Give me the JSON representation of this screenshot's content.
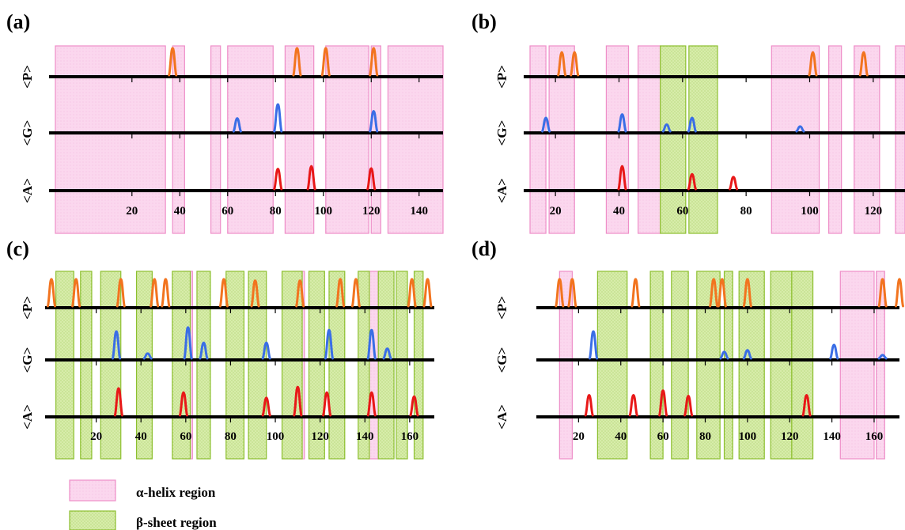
{
  "colors": {
    "helix_fill": "#fbd7ee",
    "helix_stroke": "#ee8ec8",
    "sheet_fill": "#d7ecaa",
    "sheet_stroke": "#8cbf2e",
    "P": "#f2741f",
    "G": "#3a6ee6",
    "A": "#e81818",
    "axis": "#000000"
  },
  "legend": {
    "helix_label": "α-helix region",
    "sheet_label": "β-sheet region"
  },
  "chart_data": [
    {
      "panel": "(a)",
      "type": "peak-track",
      "rows": [
        "<P>",
        "<G>",
        "<A>"
      ],
      "xlim": [
        -12,
        150
      ],
      "ticks": [
        20,
        40,
        60,
        80,
        100,
        120,
        140
      ],
      "helix": [
        [
          -12,
          34
        ],
        [
          37,
          42
        ],
        [
          53,
          57
        ],
        [
          60,
          79
        ],
        [
          84,
          96
        ],
        [
          101,
          119
        ],
        [
          120,
          124
        ],
        [
          127,
          150
        ]
      ],
      "sheet": [],
      "peaks": {
        "P": [
          [
            37,
            1.0
          ],
          [
            89,
            1.0
          ],
          [
            101,
            1.0
          ],
          [
            121,
            1.0
          ]
        ],
        "G": [
          [
            64,
            0.48
          ],
          [
            81,
            1.0
          ],
          [
            121,
            0.75
          ]
        ],
        "A": [
          [
            81,
            0.75
          ],
          [
            95,
            0.85
          ],
          [
            120,
            0.77
          ]
        ]
      }
    },
    {
      "panel": "(b)",
      "type": "peak-track",
      "rows": [
        "<P>",
        "<G>",
        "<A>"
      ],
      "xlim": [
        12,
        130
      ],
      "ticks": [
        20,
        40,
        60,
        80,
        100,
        120
      ],
      "helix": [
        [
          12,
          17
        ],
        [
          18,
          26
        ],
        [
          36,
          43
        ],
        [
          46,
          53
        ],
        [
          88,
          103
        ],
        [
          106,
          110
        ],
        [
          114,
          122
        ],
        [
          127,
          130
        ]
      ],
      "sheet": [
        [
          53,
          61
        ],
        [
          62,
          71
        ]
      ],
      "peaks": {
        "P": [
          [
            22,
            0.85
          ],
          [
            26,
            0.85
          ],
          [
            101,
            0.85
          ],
          [
            117,
            0.85
          ]
        ],
        "G": [
          [
            17,
            0.5
          ],
          [
            41,
            0.63
          ],
          [
            55,
            0.25
          ],
          [
            63,
            0.5
          ],
          [
            97,
            0.18
          ]
        ],
        "A": [
          [
            41,
            0.85
          ],
          [
            63,
            0.55
          ],
          [
            76,
            0.45
          ]
        ]
      }
    },
    {
      "panel": "(c)",
      "type": "peak-track",
      "rows": [
        "<P>",
        "<G>",
        "<A>"
      ],
      "xlim": [
        0,
        171
      ],
      "ticks": [
        20,
        40,
        60,
        80,
        100,
        120,
        140,
        160
      ],
      "helix": [
        [
          59,
          63
        ],
        [
          108,
          113
        ],
        [
          141,
          146
        ]
      ],
      "sheet": [
        [
          2,
          10
        ],
        [
          13,
          18
        ],
        [
          22,
          31
        ],
        [
          38,
          45
        ],
        [
          54,
          62
        ],
        [
          65,
          71
        ],
        [
          78,
          86
        ],
        [
          88,
          96
        ],
        [
          103,
          112
        ],
        [
          115,
          122
        ],
        [
          124,
          131
        ],
        [
          137,
          142
        ],
        [
          146,
          153
        ],
        [
          154,
          159
        ],
        [
          162,
          166
        ]
      ],
      "peaks": {
        "P": [
          [
            0,
            1.0
          ],
          [
            11,
            1.0
          ],
          [
            31,
            1.0
          ],
          [
            46,
            1.0
          ],
          [
            51,
            1.0
          ],
          [
            77,
            1.0
          ],
          [
            91,
            0.95
          ],
          [
            111,
            0.95
          ],
          [
            129,
            1.0
          ],
          [
            136,
            1.0
          ],
          [
            161,
            1.0
          ],
          [
            168,
            1.0
          ]
        ],
        "G": [
          [
            29,
            1.0
          ],
          [
            43,
            0.18
          ],
          [
            61,
            1.15
          ],
          [
            68,
            0.58
          ],
          [
            96,
            0.58
          ],
          [
            124,
            1.05
          ],
          [
            143,
            1.05
          ],
          [
            150,
            0.36
          ]
        ],
        "A": [
          [
            30,
            1.0
          ],
          [
            59,
            0.85
          ],
          [
            96,
            0.65
          ],
          [
            110,
            1.05
          ],
          [
            123,
            0.85
          ],
          [
            143,
            0.85
          ],
          [
            162,
            0.7
          ]
        ]
      }
    },
    {
      "panel": "(d)",
      "type": "peak-track",
      "rows": [
        "<P>",
        "<G>",
        "<A>"
      ],
      "xlim": [
        3,
        172
      ],
      "ticks": [
        20,
        40,
        60,
        80,
        100,
        120,
        140,
        160
      ],
      "helix": [
        [
          11,
          17
        ],
        [
          144,
          160
        ],
        [
          161,
          165
        ]
      ],
      "sheet": [
        [
          29,
          43
        ],
        [
          54,
          60
        ],
        [
          64,
          72
        ],
        [
          76,
          87
        ],
        [
          89,
          93
        ],
        [
          96,
          108
        ],
        [
          111,
          121
        ],
        [
          121,
          131
        ]
      ],
      "peaks": {
        "P": [
          [
            11,
            1.0
          ],
          [
            17,
            1.0
          ],
          [
            47,
            1.0
          ],
          [
            84,
            1.0
          ],
          [
            88,
            1.0
          ],
          [
            100,
            1.0
          ],
          [
            164,
            1.0
          ],
          [
            172,
            1.0
          ]
        ],
        "G": [
          [
            27,
            1.0
          ],
          [
            89,
            0.24
          ],
          [
            100,
            0.3
          ],
          [
            141,
            0.5
          ],
          [
            164,
            0.12
          ]
        ],
        "A": [
          [
            25,
            0.75
          ],
          [
            46,
            0.75
          ],
          [
            60,
            0.92
          ],
          [
            72,
            0.72
          ],
          [
            128,
            0.75
          ]
        ]
      }
    }
  ]
}
